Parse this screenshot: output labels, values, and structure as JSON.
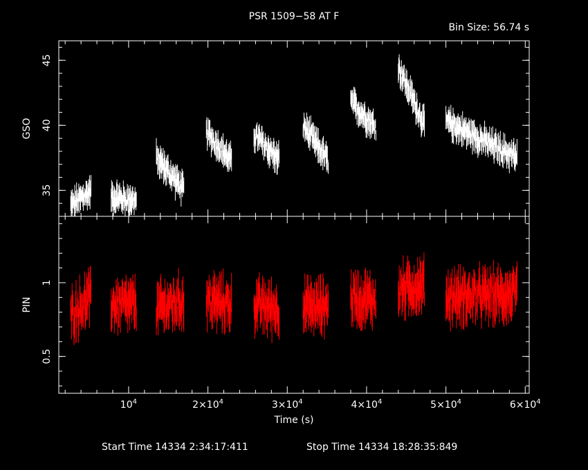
{
  "chart_data": {
    "type": "scatter",
    "title": "PSR 1509−58 AT F",
    "bin_size_label": "Bin Size:  56.74  s",
    "xlabel": "Time (s)",
    "xlim": [
      1200,
      60500
    ],
    "x_tick_values": [
      10000,
      20000,
      30000,
      40000,
      50000,
      60000
    ],
    "x_tick_mantissas": [
      "",
      "2×",
      "3×",
      "4×",
      "5×",
      "6×"
    ],
    "x_tick_base": "10",
    "x_tick_exp": "4",
    "start_time": "Start Time 14334  2:34:17:411",
    "stop_time": "Stop Time 14334 18:28:35:849",
    "panels": [
      {
        "name": "GSO",
        "ylabel": "GSO",
        "ylim": [
          33.0,
          46.5
        ],
        "yticks": [
          35,
          40,
          45
        ],
        "ytick_labels": [
          "35",
          "40",
          "45"
        ],
        "color": "#ffffff",
        "error": 0.7,
        "noise": 0.6,
        "segments": [
          {
            "x0": 2700,
            "x1": 5300,
            "y0": 33.8,
            "y1": 35.0
          },
          {
            "x0": 7800,
            "x1": 11000,
            "y0": 34.5,
            "y1": 34.2
          },
          {
            "x0": 13500,
            "x1": 17000,
            "y0": 37.5,
            "y1": 35.0
          },
          {
            "x0": 19800,
            "x1": 23000,
            "y0": 39.5,
            "y1": 37.2
          },
          {
            "x0": 25800,
            "x1": 29000,
            "y0": 39.3,
            "y1": 37.3
          },
          {
            "x0": 32000,
            "x1": 35200,
            "y0": 40.0,
            "y1": 37.2
          },
          {
            "x0": 38000,
            "x1": 41200,
            "y0": 41.8,
            "y1": 39.8
          },
          {
            "x0": 44000,
            "x1": 47300,
            "y0": 44.5,
            "y1": 40.0
          },
          {
            "x0": 50000,
            "x1": 59000,
            "y0": 40.3,
            "y1": 37.5
          }
        ]
      },
      {
        "name": "PIN",
        "ylabel": "PIN",
        "ylim": [
          0.25,
          1.45
        ],
        "yticks": [
          0.5,
          1.0
        ],
        "ytick_labels": [
          "0.5",
          "1"
        ],
        "color": "#ff0000",
        "error": 0.1,
        "noise": 0.1,
        "segments": [
          {
            "x0": 2700,
            "x1": 5300,
            "y0": 0.78,
            "y1": 0.9
          },
          {
            "x0": 7800,
            "x1": 11000,
            "y0": 0.85,
            "y1": 0.85
          },
          {
            "x0": 13500,
            "x1": 17000,
            "y0": 0.82,
            "y1": 0.88
          },
          {
            "x0": 19800,
            "x1": 23000,
            "y0": 0.88,
            "y1": 0.85
          },
          {
            "x0": 25800,
            "x1": 29000,
            "y0": 0.85,
            "y1": 0.82
          },
          {
            "x0": 32000,
            "x1": 35200,
            "y0": 0.83,
            "y1": 0.85
          },
          {
            "x0": 38000,
            "x1": 41200,
            "y0": 0.9,
            "y1": 0.88
          },
          {
            "x0": 44000,
            "x1": 47300,
            "y0": 0.95,
            "y1": 0.98
          },
          {
            "x0": 50000,
            "x1": 59000,
            "y0": 0.9,
            "y1": 0.92
          }
        ]
      }
    ]
  }
}
